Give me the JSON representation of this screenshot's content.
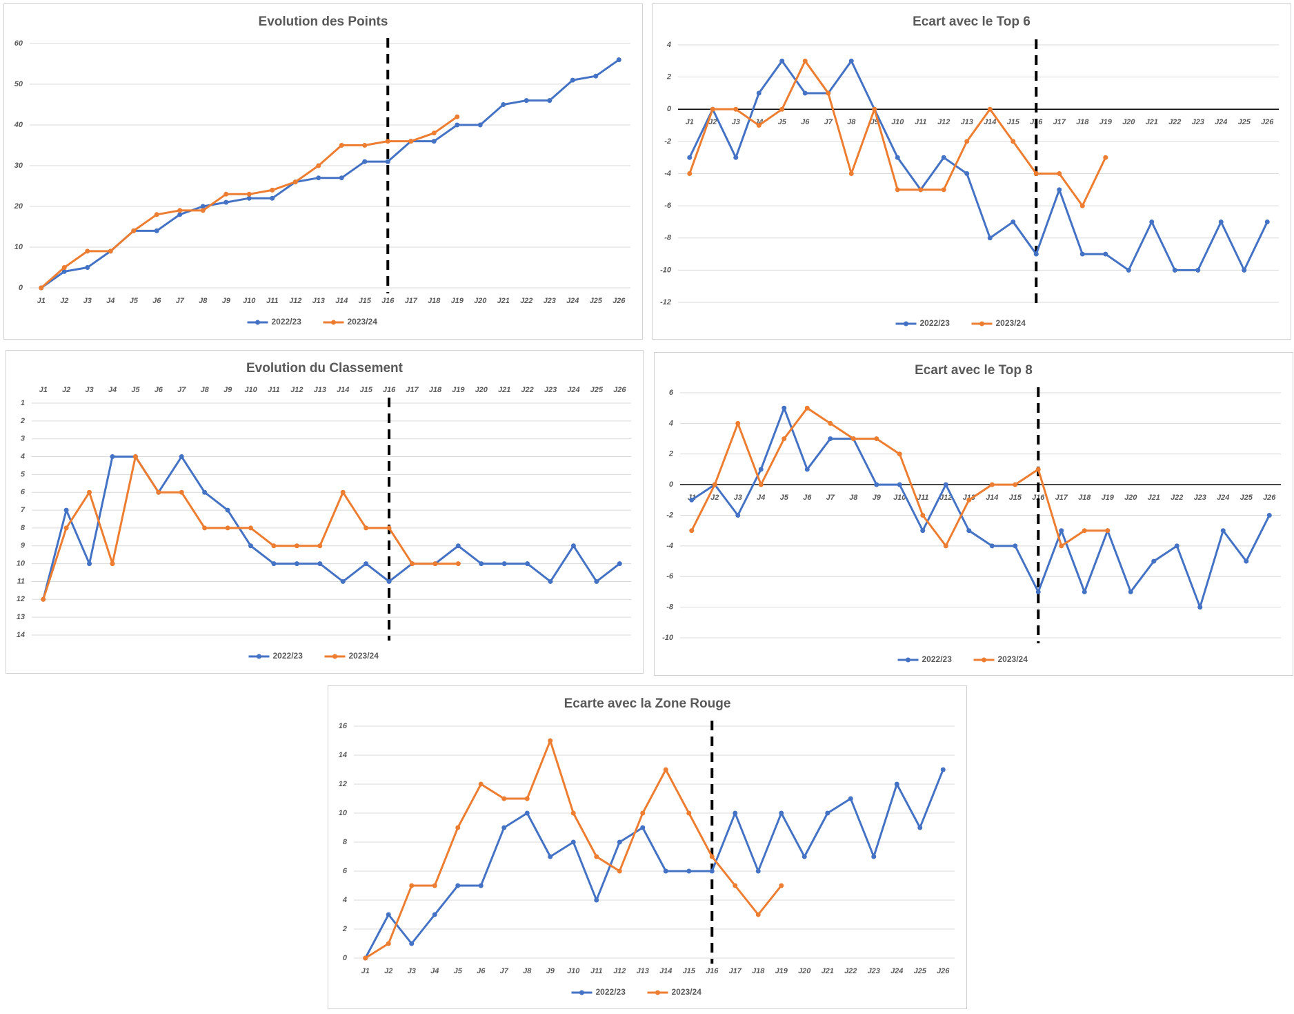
{
  "chart_data": [
    {
      "type": "line",
      "title": "Evolution des Points",
      "categories": [
        "J1",
        "J2",
        "J3",
        "J4",
        "J5",
        "J6",
        "J7",
        "J8",
        "J9",
        "J10",
        "J11",
        "J12",
        "J13",
        "J14",
        "J15",
        "J16",
        "J17",
        "J18",
        "J19",
        "J20",
        "J21",
        "J22",
        "J23",
        "J24",
        "J25",
        "J26"
      ],
      "series": [
        {
          "name": "2022/23",
          "color": "#4472c4",
          "values": [
            0,
            4,
            5,
            9,
            14,
            14,
            18,
            20,
            21,
            22,
            22,
            26,
            27,
            27,
            31,
            31,
            36,
            36,
            40,
            40,
            45,
            46,
            46,
            51,
            52,
            56
          ]
        },
        {
          "name": "2023/24",
          "color": "#ed7d31",
          "values": [
            0,
            5,
            9,
            9,
            14,
            18,
            19,
            19,
            23,
            23,
            24,
            26,
            30,
            35,
            35,
            36,
            36,
            38,
            42,
            null,
            null,
            null,
            null,
            null,
            null,
            null
          ]
        }
      ],
      "ylim": [
        0,
        60
      ],
      "yticks": [
        0,
        10,
        20,
        30,
        40,
        50,
        60
      ],
      "grid": true,
      "legend": "bottom",
      "vline": "J16"
    },
    {
      "type": "line",
      "title": "Ecart avec le Top 6",
      "categories": [
        "J1",
        "J2",
        "J3",
        "J4",
        "J5",
        "J6",
        "J7",
        "J8",
        "J9",
        "J10",
        "J11",
        "J12",
        "J13",
        "J14",
        "J15",
        "J16",
        "J17",
        "J18",
        "J19",
        "J20",
        "J21",
        "J22",
        "J23",
        "J24",
        "J25",
        "J26"
      ],
      "series": [
        {
          "name": "2022/23",
          "color": "#4472c4",
          "values": [
            -3,
            0,
            -3,
            1,
            3,
            1,
            1,
            3,
            0,
            -3,
            -5,
            -3,
            -4,
            -8,
            -7,
            -9,
            -5,
            -9,
            -9,
            -10,
            -7,
            -10,
            -10,
            -7,
            -10,
            -7
          ]
        },
        {
          "name": "2023/24",
          "color": "#ed7d31",
          "values": [
            -4,
            0,
            0,
            -1,
            0,
            3,
            1,
            -4,
            0,
            -5,
            -5,
            -5,
            -2,
            0,
            -2,
            -4,
            -4,
            -6,
            -3,
            null,
            null,
            null,
            null,
            null,
            null,
            null
          ]
        }
      ],
      "ylim": [
        -12,
        4
      ],
      "yticks": [
        -12,
        -10,
        -8,
        -6,
        -4,
        -2,
        0,
        2,
        4
      ],
      "grid": true,
      "legend": "bottom",
      "vline": "J16",
      "zero_line": true
    },
    {
      "type": "line",
      "title": "Evolution du Classement",
      "categories": [
        "J1",
        "J2",
        "J3",
        "J4",
        "J5",
        "J6",
        "J7",
        "J8",
        "J9",
        "J10",
        "J11",
        "J12",
        "J13",
        "J14",
        "J15",
        "J16",
        "J17",
        "J18",
        "J19",
        "J20",
        "J21",
        "J22",
        "J23",
        "J24",
        "J25",
        "J26"
      ],
      "series": [
        {
          "name": "2022/23",
          "color": "#4472c4",
          "values": [
            12,
            7,
            10,
            4,
            4,
            6,
            4,
            6,
            7,
            9,
            10,
            10,
            10,
            11,
            10,
            11,
            10,
            10,
            9,
            10,
            10,
            10,
            11,
            9,
            11,
            10
          ]
        },
        {
          "name": "2023/24",
          "color": "#ed7d31",
          "values": [
            12,
            8,
            6,
            10,
            4,
            6,
            6,
            8,
            8,
            8,
            9,
            9,
            9,
            6,
            8,
            8,
            10,
            10,
            10,
            null,
            null,
            null,
            null,
            null,
            null,
            null
          ]
        }
      ],
      "ylim": [
        1,
        14
      ],
      "yticks": [
        1,
        2,
        3,
        4,
        5,
        6,
        7,
        8,
        9,
        10,
        11,
        12,
        13,
        14
      ],
      "y_inverted": true,
      "x_axis_position": "top",
      "grid": true,
      "legend": "bottom",
      "vline": "J16"
    },
    {
      "type": "line",
      "title": "Ecart avec le Top 8",
      "categories": [
        "J1",
        "J2",
        "J3",
        "J4",
        "J5",
        "J6",
        "J7",
        "J8",
        "J9",
        "J10",
        "J11",
        "J12",
        "J13",
        "J14",
        "J15",
        "J16",
        "J17",
        "J18",
        "J19",
        "J20",
        "J21",
        "J22",
        "J23",
        "J24",
        "J25",
        "J26"
      ],
      "series": [
        {
          "name": "2022/23",
          "color": "#4472c4",
          "values": [
            -1,
            0,
            -2,
            1,
            5,
            1,
            3,
            3,
            0,
            0,
            -3,
            0,
            -3,
            -4,
            -4,
            -7,
            -3,
            -7,
            -3,
            -7,
            -5,
            -4,
            -8,
            -3,
            -5,
            -2
          ]
        },
        {
          "name": "2023/24",
          "color": "#ed7d31",
          "values": [
            -3,
            0,
            4,
            0,
            3,
            5,
            4,
            3,
            3,
            2,
            -2,
            -4,
            -1,
            0,
            0,
            1,
            -4,
            -3,
            -3,
            null,
            null,
            null,
            null,
            null,
            null,
            null
          ]
        }
      ],
      "ylim": [
        -10,
        6
      ],
      "yticks": [
        -10,
        -8,
        -6,
        -4,
        -2,
        0,
        2,
        4,
        6
      ],
      "grid": true,
      "legend": "bottom",
      "vline": "J16",
      "zero_line": true
    },
    {
      "type": "line",
      "title": "Ecarte avec la Zone Rouge",
      "categories": [
        "J1",
        "J2",
        "J3",
        "J4",
        "J5",
        "J6",
        "J7",
        "J8",
        "J9",
        "J10",
        "J11",
        "J12",
        "J13",
        "J14",
        "J15",
        "J16",
        "J17",
        "J18",
        "J19",
        "J20",
        "J21",
        "J22",
        "J23",
        "J24",
        "J25",
        "J26"
      ],
      "series": [
        {
          "name": "2022/23",
          "color": "#4472c4",
          "values": [
            0,
            3,
            1,
            3,
            5,
            5,
            9,
            10,
            7,
            8,
            4,
            8,
            9,
            6,
            6,
            6,
            10,
            6,
            10,
            7,
            10,
            11,
            7,
            12,
            9,
            13
          ]
        },
        {
          "name": "2023/24",
          "color": "#ed7d31",
          "values": [
            0,
            1,
            5,
            5,
            9,
            12,
            11,
            11,
            15,
            10,
            7,
            6,
            10,
            13,
            10,
            7,
            5,
            3,
            5,
            null,
            null,
            null,
            null,
            null,
            null,
            null
          ]
        }
      ],
      "ylim": [
        0,
        16
      ],
      "yticks": [
        0,
        2,
        4,
        6,
        8,
        10,
        12,
        14,
        16
      ],
      "grid": true,
      "legend": "bottom",
      "vline": "J16"
    }
  ]
}
